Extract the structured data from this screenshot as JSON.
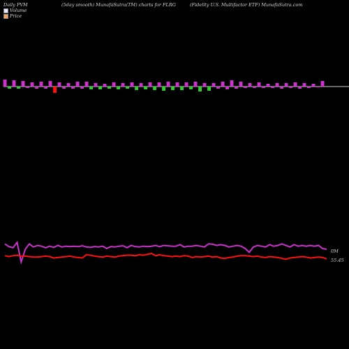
{
  "header": {
    "left": "Daily PVM",
    "center": "(5day smooth) MunafaSutra(TM) charts for FLRG",
    "right": "(Fidelity U.S. Multifactor ETF) MunafaSutra.com"
  },
  "legend": [
    {
      "label": "Volume",
      "color": "#e8e8ff"
    },
    {
      "label": "Price",
      "color": "#f4a460"
    }
  ],
  "colors": {
    "up_bar": "#cc33cc",
    "down_bar": "#33cc33",
    "red_bar": "#ff1111",
    "volume_line": "#cc33cc",
    "price_line": "#ff1111",
    "zero_line": "#cccccc"
  },
  "chart_data": {
    "type": "bar",
    "bars": {
      "values": [
        10,
        -3,
        9,
        -3,
        8,
        -2,
        6,
        -3,
        7,
        -3,
        8,
        -9,
        6,
        -3,
        5,
        -3,
        7,
        -3,
        7,
        -4,
        5,
        -4,
        4,
        -3,
        6,
        -4,
        5,
        -3,
        6,
        -5,
        5,
        -4,
        6,
        -5,
        6,
        -6,
        7,
        -5,
        6,
        -5,
        6,
        -4,
        7,
        -7,
        5,
        -6,
        5,
        -3,
        7,
        -4,
        9,
        -3,
        7,
        -2,
        5,
        -2,
        6,
        -2,
        4,
        -2,
        5,
        -3,
        5,
        -2,
        6,
        -3,
        5,
        -2,
        4,
        -1,
        8
      ],
      "colors": [
        "up",
        "down",
        "up",
        "down",
        "up",
        "up",
        "up",
        "up",
        "up",
        "up",
        "up",
        "red",
        "up",
        "up",
        "up",
        "up",
        "up",
        "up",
        "up",
        "down",
        "up",
        "down",
        "up",
        "down",
        "up",
        "down",
        "up",
        "down",
        "up",
        "down",
        "up",
        "down",
        "up",
        "down",
        "up",
        "down",
        "up",
        "down",
        "up",
        "down",
        "up",
        "down",
        "up",
        "down",
        "up",
        "down",
        "up",
        "up",
        "up",
        "up",
        "up",
        "up",
        "up",
        "up",
        "up",
        "up",
        "up",
        "up",
        "up",
        "up",
        "up",
        "up",
        "up",
        "up",
        "up",
        "up",
        "up",
        "up",
        "up",
        "up",
        "up"
      ]
    },
    "volume_line": [
      92,
      85,
      82,
      96,
      45,
      78,
      92,
      84,
      88,
      86,
      82,
      86,
      83,
      88,
      84,
      86,
      85,
      86,
      85,
      87,
      84,
      83,
      85,
      84,
      86,
      80,
      85,
      84,
      86,
      87,
      82,
      88,
      85,
      84,
      86,
      85,
      86,
      88,
      85,
      88,
      87,
      86,
      86,
      90,
      84,
      86,
      86,
      88,
      86,
      84,
      92,
      91,
      88,
      90,
      88,
      84,
      86,
      88,
      86,
      80,
      70,
      84,
      88,
      86,
      84,
      90,
      86,
      88,
      92,
      88,
      84,
      90,
      86,
      88,
      86,
      88,
      86,
      88,
      80,
      78
    ],
    "price_line": [
      98,
      96,
      98,
      99,
      97,
      97,
      96,
      95,
      95,
      96,
      97,
      96,
      93,
      94,
      95,
      96,
      97,
      95,
      94,
      93,
      100,
      99,
      97,
      96,
      95,
      97,
      96,
      95,
      97,
      98,
      99,
      99,
      98,
      100,
      99,
      101,
      103,
      98,
      100,
      98,
      97,
      96,
      97,
      96,
      98,
      97,
      94,
      96,
      95,
      96,
      97,
      95,
      96,
      93,
      92,
      94,
      95,
      97,
      98,
      98,
      97,
      96,
      97,
      95,
      94,
      96,
      95,
      94,
      92,
      90,
      93,
      94,
      95,
      96,
      95,
      93,
      94,
      95,
      94,
      91
    ],
    "price_readout": "55.45",
    "volume_readout": "0M"
  }
}
